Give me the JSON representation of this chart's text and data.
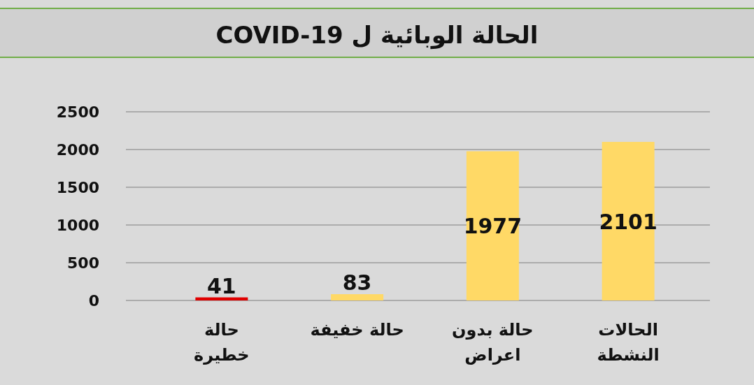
{
  "chart_data": {
    "type": "bar",
    "title": "الحالة الوبائية ل  COVID-19",
    "categories": [
      "حالة خطيرة",
      "حالة خفيفة",
      "حالة بدون اعراض",
      "الحالات النشطة"
    ],
    "values": [
      41,
      83,
      1977,
      2101
    ],
    "colors": [
      "#e00000",
      "#ffd966",
      "#ffd966",
      "#ffd966"
    ],
    "ylim": [
      0,
      2500
    ],
    "yticks": [
      0,
      500,
      1000,
      1500,
      2000,
      2500
    ],
    "grid": "y",
    "data_labels": true
  }
}
